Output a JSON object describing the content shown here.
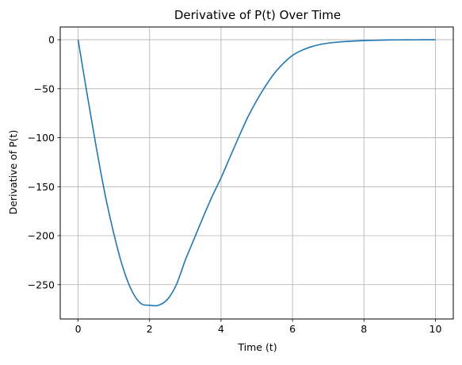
{
  "chart_data": {
    "type": "line",
    "title": "Derivative of P(t) Over Time",
    "xlabel": "Time (t)",
    "ylabel": "Derivative of P(t)",
    "xlim": [
      -0.5,
      10.5
    ],
    "ylim": [
      -285,
      13
    ],
    "xticks": [
      0,
      2,
      4,
      6,
      8,
      10
    ],
    "xtick_labels": [
      "0",
      "2",
      "4",
      "6",
      "8",
      "10"
    ],
    "yticks": [
      0,
      -50,
      -100,
      -150,
      -200,
      -250
    ],
    "ytick_labels": [
      "0",
      "−50",
      "−100",
      "−150",
      "−200",
      "−250"
    ],
    "grid": true,
    "legend": "none",
    "series": [
      {
        "color": "#1f77b4",
        "x": [
          0,
          0.25,
          0.5,
          0.75,
          1.0,
          1.25,
          1.5,
          1.75,
          2.0,
          2.25,
          2.5,
          2.75,
          3.0,
          3.25,
          3.5,
          3.75,
          4.0,
          4.25,
          4.5,
          4.75,
          5.0,
          5.25,
          5.5,
          5.75,
          6.0,
          6.25,
          6.5,
          6.75,
          7.0,
          7.25,
          7.5,
          7.75,
          8.0,
          8.25,
          8.5,
          8.75,
          9.0,
          9.25,
          9.5,
          9.75,
          10.0
        ],
        "y": [
          0,
          -55,
          -108,
          -157,
          -198,
          -232,
          -256,
          -269,
          -271,
          -271,
          -265,
          -250,
          -225,
          -203,
          -181,
          -160,
          -141,
          -120,
          -99,
          -79,
          -62,
          -47,
          -34,
          -24,
          -16,
          -11,
          -7.5,
          -5,
          -3.5,
          -2.5,
          -1.8,
          -1.3,
          -0.9,
          -0.6,
          -0.4,
          -0.25,
          -0.15,
          -0.1,
          -0.05,
          -0.02,
          0
        ]
      }
    ]
  }
}
